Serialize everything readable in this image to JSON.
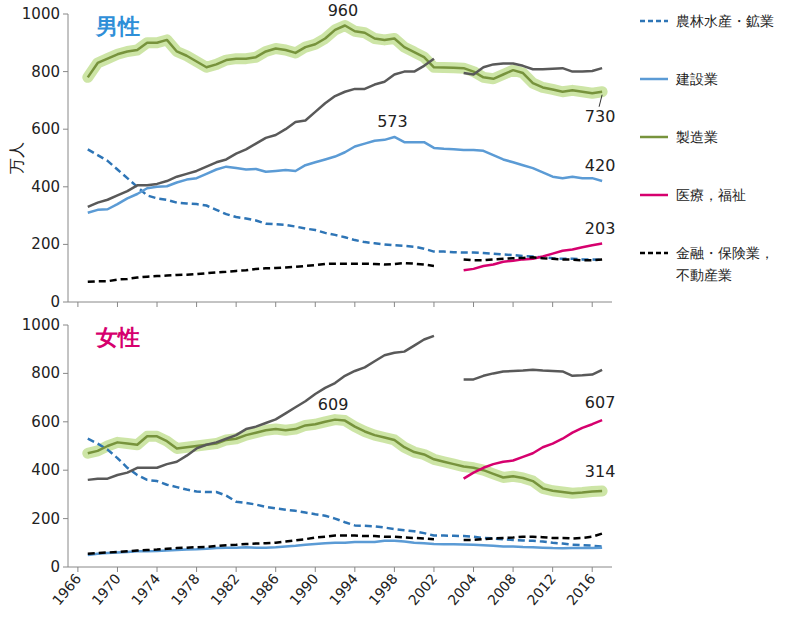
{
  "chart_data": [
    {
      "type": "line",
      "title": "男性",
      "y_label": "万人",
      "categories": [
        "1966",
        null,
        null,
        null,
        "1970",
        null,
        null,
        null,
        "1974",
        null,
        null,
        null,
        "1978",
        null,
        null,
        null,
        "1982",
        null,
        null,
        null,
        "1986",
        null,
        null,
        null,
        "1990",
        null,
        null,
        null,
        "1994",
        null,
        null,
        null,
        "1998",
        null,
        null,
        null,
        "2002",
        null,
        null,
        null,
        "2004",
        null,
        null,
        null,
        "2008",
        null,
        null,
        null,
        "2012",
        null,
        null,
        null,
        "2016",
        null
      ],
      "ylim": [
        0,
        1000
      ],
      "yticks": [
        0,
        200,
        400,
        600,
        800,
        1000
      ],
      "grid": false,
      "legend": "right",
      "tick_labels": "y",
      "series": [
        {
          "name": "農林水産・鉱業",
          "color": "#2e75b6",
          "line_style": "dashed",
          "values": [
            null,
            530,
            510,
            490,
            460,
            430,
            400,
            370,
            360,
            355,
            345,
            342,
            340,
            335,
            320,
            305,
            295,
            290,
            283,
            272,
            270,
            268,
            262,
            255,
            250,
            240,
            233,
            225,
            215,
            208,
            204,
            200,
            197,
            195,
            192,
            185,
            175,
            175,
            173,
            172,
            172,
            170,
            168,
            165,
            163,
            160,
            158,
            155,
            152,
            150,
            150,
            148,
            148,
            146
          ]
        },
        {
          "name": "建設業",
          "color": "#5b9bd5",
          "line_style": "solid",
          "values": [
            null,
            310,
            320,
            322,
            340,
            360,
            375,
            395,
            400,
            402,
            415,
            425,
            430,
            445,
            460,
            470,
            465,
            460,
            462,
            452,
            455,
            458,
            455,
            475,
            485,
            495,
            505,
            520,
            540,
            550,
            560,
            563,
            573,
            555,
            555,
            555,
            535,
            532,
            530,
            528,
            528,
            525,
            510,
            495,
            485,
            475,
            465,
            450,
            435,
            430,
            435,
            430,
            430,
            420
          ]
        },
        {
          "name": "製造業",
          "color": "#77933c",
          "line_style": "highlight",
          "values": [
            null,
            780,
            830,
            845,
            860,
            870,
            875,
            900,
            900,
            910,
            870,
            855,
            835,
            815,
            825,
            840,
            845,
            845,
            850,
            870,
            880,
            875,
            865,
            885,
            895,
            915,
            945,
            960,
            940,
            935,
            915,
            910,
            915,
            885,
            868,
            850,
            815,
            814,
            813,
            812,
            800,
            780,
            775,
            790,
            805,
            795,
            760,
            745,
            738,
            730,
            735,
            730,
            725,
            730
          ]
        },
        {
          "name": "医療，福祉",
          "color": "#d6006e",
          "line_style": "solid",
          "values": [
            null,
            null,
            null,
            null,
            null,
            null,
            null,
            null,
            null,
            null,
            null,
            null,
            null,
            null,
            null,
            null,
            null,
            null,
            null,
            null,
            null,
            null,
            null,
            null,
            null,
            null,
            null,
            null,
            null,
            null,
            null,
            null,
            null,
            null,
            null,
            null,
            null,
            null,
            null,
            110,
            115,
            125,
            130,
            140,
            143,
            148,
            150,
            158,
            168,
            178,
            182,
            190,
            197,
            203
          ]
        },
        {
          "name": "金融・保険業，\n不動産業",
          "color": "#000000",
          "line_style": "dashed",
          "values": [
            null,
            70,
            72,
            72,
            78,
            80,
            85,
            88,
            90,
            92,
            94,
            95,
            97,
            100,
            103,
            105,
            108,
            110,
            115,
            117,
            118,
            120,
            122,
            125,
            128,
            132,
            133,
            133,
            133,
            133,
            132,
            130,
            132,
            135,
            133,
            130,
            125,
            null,
            null,
            148,
            145,
            145,
            148,
            150,
            152,
            153,
            155,
            152,
            150,
            148,
            147,
            145,
            145,
            148
          ]
        },
        {
          "color": "#595959",
          "line_style": "solid",
          "values": [
            null,
            330,
            345,
            355,
            370,
            385,
            405,
            405,
            410,
            420,
            435,
            445,
            455,
            470,
            485,
            495,
            515,
            530,
            550,
            570,
            580,
            600,
            625,
            630,
            660,
            690,
            715,
            730,
            740,
            740,
            755,
            765,
            790,
            800,
            800,
            820,
            845,
            null,
            null,
            795,
            790,
            815,
            825,
            828,
            828,
            820,
            808,
            808,
            810,
            812,
            800,
            800,
            802,
            812
          ]
        }
      ],
      "annotations": [
        {
          "text": "960",
          "series": 2,
          "index": 27
        },
        {
          "text": "573",
          "series": 1,
          "index": 32
        },
        {
          "text": "730",
          "series": 2,
          "index": 53
        },
        {
          "text": "420",
          "series": 1,
          "index": 53
        },
        {
          "text": "203",
          "series": 3,
          "index": 53
        }
      ]
    },
    {
      "type": "line",
      "title": "女性",
      "categories": [
        "1966",
        null,
        null,
        null,
        "1970",
        null,
        null,
        null,
        "1974",
        null,
        null,
        null,
        "1978",
        null,
        null,
        null,
        "1982",
        null,
        null,
        null,
        "1986",
        null,
        null,
        null,
        "1990",
        null,
        null,
        null,
        "1994",
        null,
        null,
        null,
        "1998",
        null,
        null,
        null,
        "2002",
        null,
        null,
        null,
        "2004",
        null,
        null,
        null,
        "2008",
        null,
        null,
        null,
        "2012",
        null,
        null,
        null,
        "2016",
        null
      ],
      "ylim": [
        0,
        1000
      ],
      "yticks": [
        0,
        200,
        400,
        600,
        800,
        1000
      ],
      "grid": false,
      "tick_labels": true,
      "series": [
        {
          "color": "#2e75b6",
          "line_style": "dashed",
          "values": [
            null,
            530,
            510,
            485,
            450,
            410,
            380,
            360,
            355,
            340,
            330,
            320,
            312,
            310,
            310,
            295,
            270,
            265,
            258,
            248,
            242,
            237,
            232,
            225,
            218,
            212,
            200,
            185,
            172,
            170,
            168,
            163,
            157,
            152,
            148,
            140,
            130,
            130,
            129,
            128,
            125,
            120,
            118,
            115,
            112,
            110,
            108,
            105,
            100,
            97,
            92,
            90,
            88,
            85
          ]
        },
        {
          "color": "#5b9bd5",
          "line_style": "solid",
          "values": [
            null,
            50,
            55,
            58,
            60,
            62,
            65,
            65,
            66,
            68,
            70,
            72,
            73,
            75,
            78,
            80,
            80,
            82,
            80,
            80,
            82,
            85,
            88,
            92,
            95,
            98,
            100,
            100,
            103,
            103,
            103,
            108,
            108,
            105,
            100,
            98,
            95,
            94,
            94,
            93,
            92,
            90,
            88,
            85,
            85,
            83,
            82,
            80,
            78,
            77,
            78,
            78,
            78,
            80
          ]
        },
        {
          "color": "#77933c",
          "line_style": "highlight",
          "values": [
            null,
            470,
            480,
            500,
            515,
            510,
            505,
            540,
            540,
            520,
            490,
            495,
            500,
            505,
            510,
            525,
            530,
            545,
            555,
            565,
            570,
            565,
            570,
            585,
            590,
            600,
            609,
            605,
            580,
            560,
            545,
            535,
            525,
            495,
            475,
            465,
            445,
            435,
            425,
            415,
            410,
            400,
            385,
            370,
            375,
            368,
            355,
            325,
            315,
            310,
            305,
            308,
            312,
            314
          ]
        },
        {
          "color": "#d6006e",
          "line_style": "solid",
          "values": [
            null,
            null,
            null,
            null,
            null,
            null,
            null,
            null,
            null,
            null,
            null,
            null,
            null,
            null,
            null,
            null,
            null,
            null,
            null,
            null,
            null,
            null,
            null,
            null,
            null,
            null,
            null,
            null,
            null,
            null,
            null,
            null,
            null,
            null,
            null,
            null,
            null,
            null,
            null,
            365,
            390,
            410,
            425,
            435,
            440,
            455,
            470,
            495,
            510,
            530,
            555,
            575,
            590,
            607
          ]
        },
        {
          "color": "#000000",
          "line_style": "dashed",
          "values": [
            null,
            55,
            58,
            60,
            62,
            65,
            68,
            70,
            72,
            75,
            78,
            80,
            82,
            83,
            87,
            90,
            92,
            95,
            97,
            98,
            100,
            105,
            110,
            115,
            122,
            125,
            130,
            130,
            130,
            128,
            128,
            125,
            125,
            122,
            120,
            118,
            115,
            null,
            null,
            112,
            112,
            115,
            118,
            120,
            122,
            125,
            125,
            123,
            120,
            120,
            118,
            120,
            125,
            138
          ]
        },
        {
          "color": "#595959",
          "line_style": "solid",
          "values": [
            null,
            360,
            365,
            365,
            380,
            390,
            410,
            410,
            410,
            425,
            435,
            460,
            490,
            505,
            515,
            530,
            545,
            570,
            580,
            595,
            610,
            635,
            660,
            685,
            715,
            740,
            760,
            790,
            810,
            825,
            850,
            875,
            885,
            890,
            915,
            940,
            955,
            null,
            null,
            775,
            775,
            790,
            800,
            808,
            810,
            812,
            815,
            812,
            810,
            808,
            790,
            792,
            795,
            815
          ]
        }
      ],
      "annotations": [
        {
          "text": "609",
          "series": 2,
          "index": 26
        },
        {
          "text": "607",
          "series": 3,
          "index": 53
        },
        {
          "text": "314",
          "series": 2,
          "index": 53
        }
      ]
    }
  ]
}
